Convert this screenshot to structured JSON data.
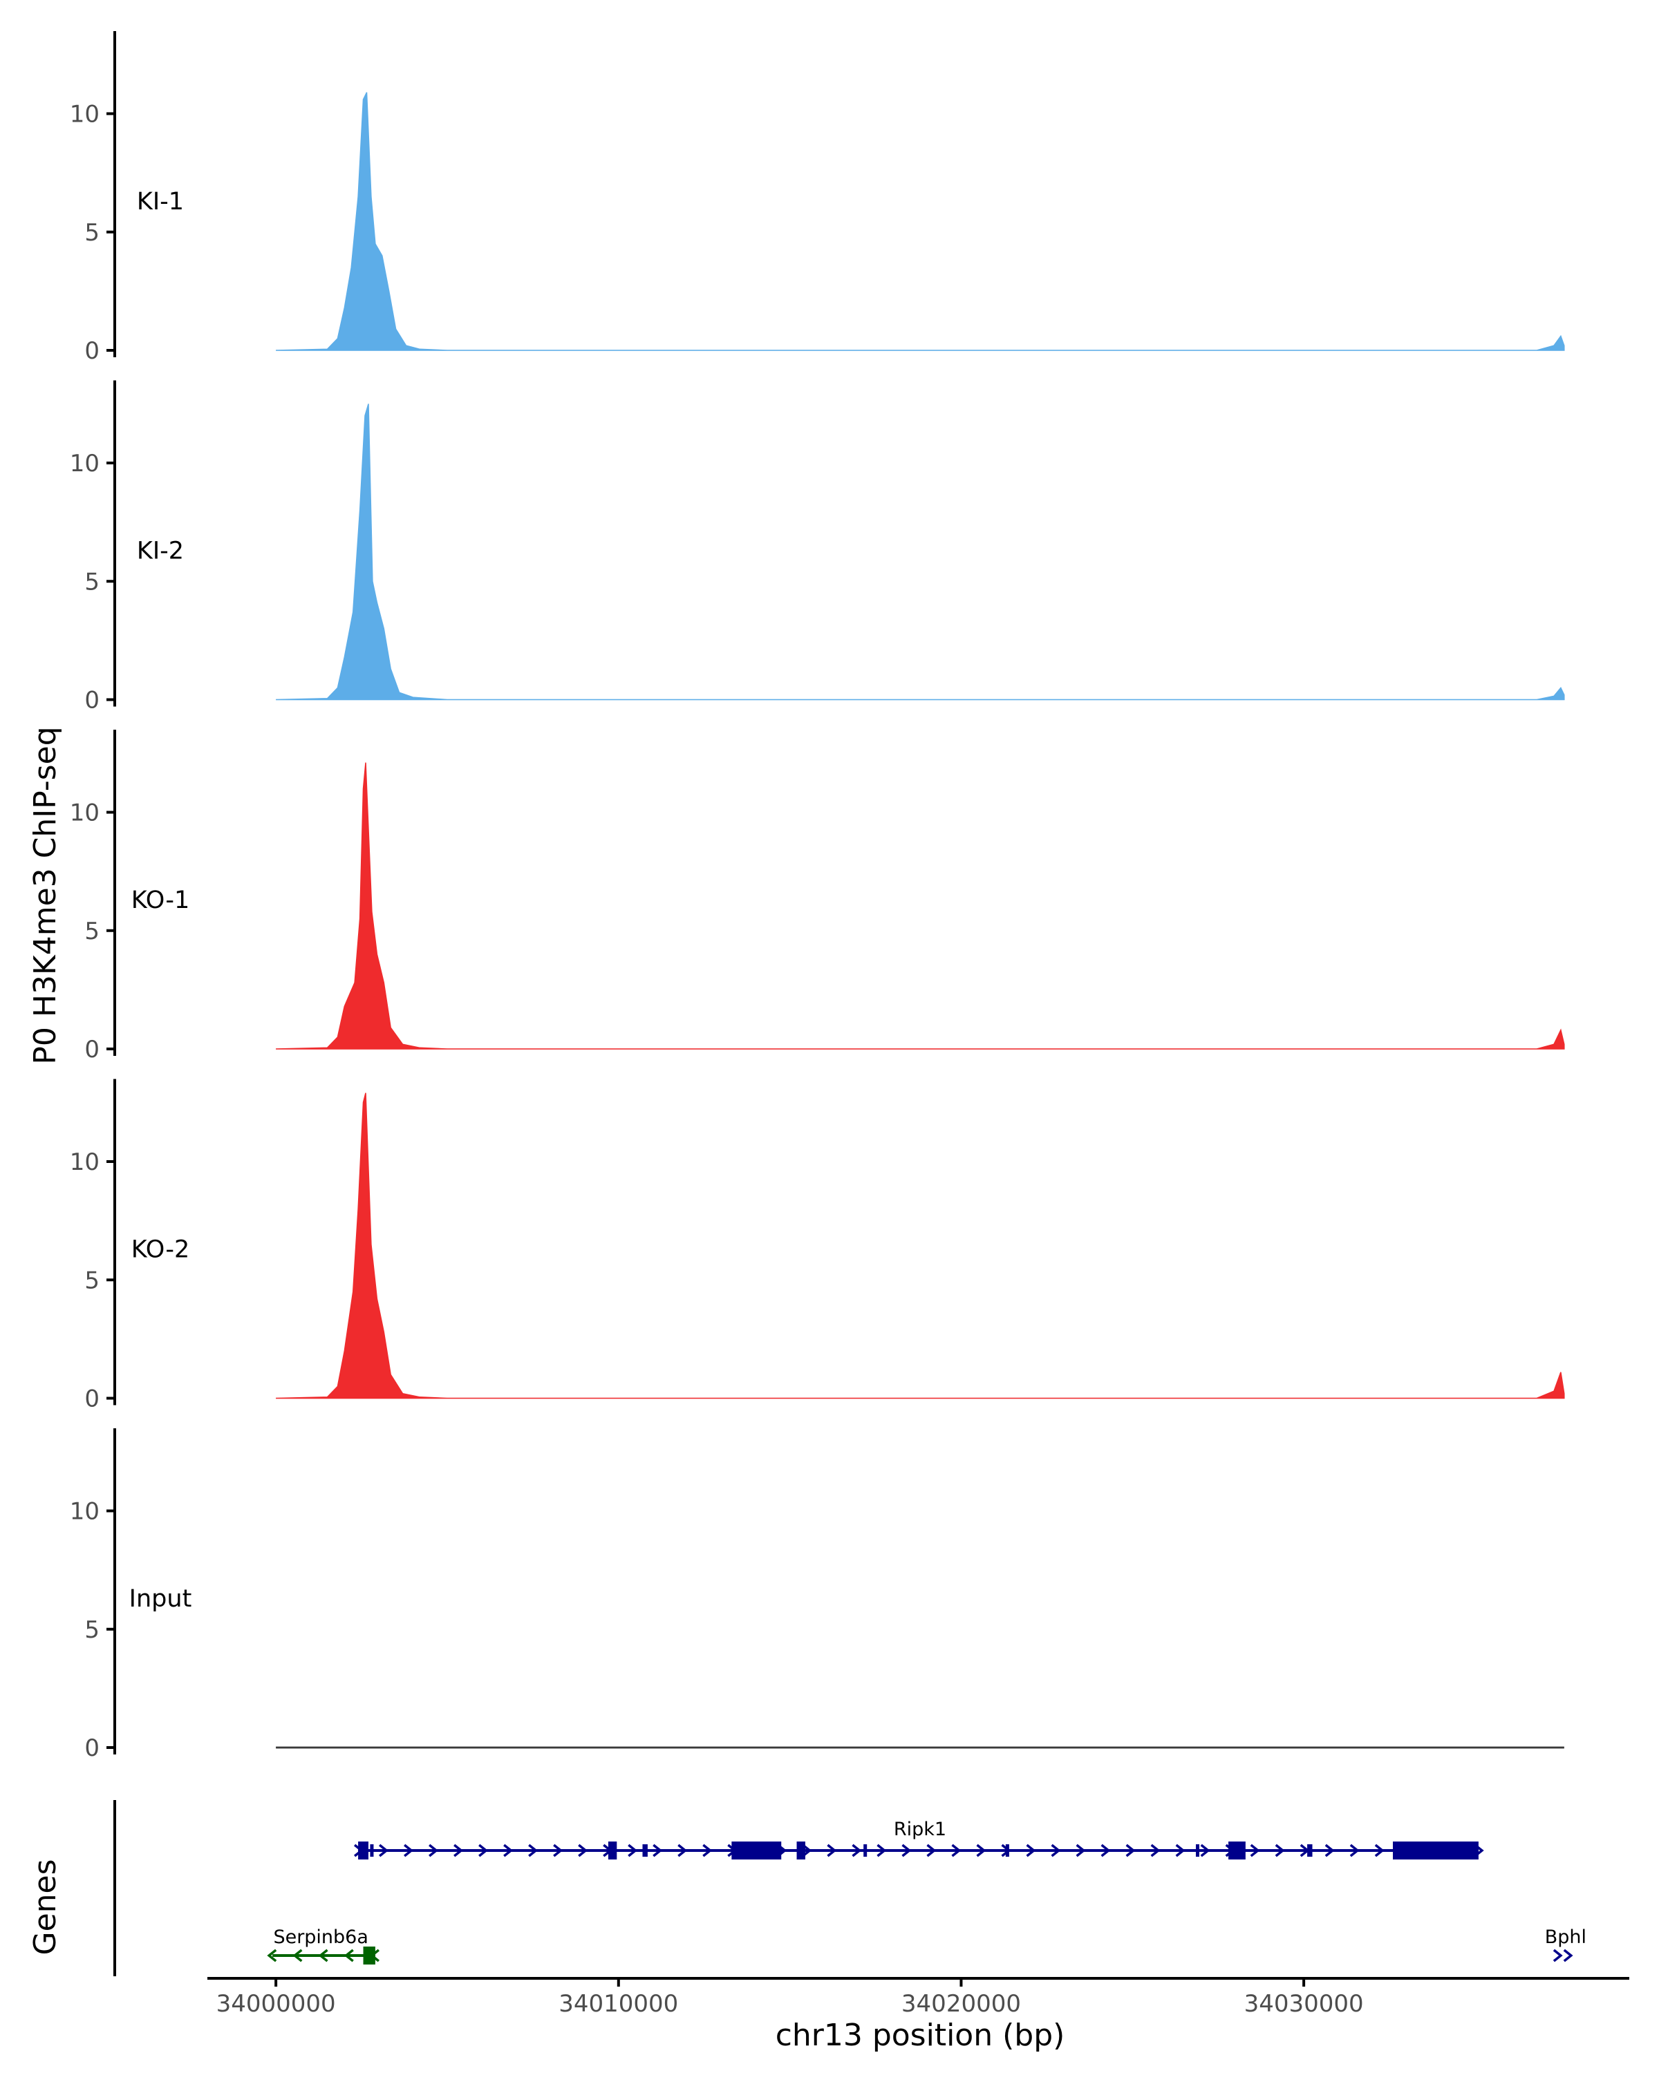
{
  "chart_data": {
    "type": "area",
    "ylabel": "P0 H3K4me3 ChIP-seq",
    "xlabel": "chr13 position (bp)",
    "colors": {
      "KI": "#5dade8",
      "KO": "#ef2b2d",
      "Input": "#333333",
      "gene_plus": "#00008b",
      "gene_minus": "#006400",
      "axis": "#000000",
      "tick_text": "#4d4d4d"
    },
    "xlim": [
      33998000,
      34039500
    ],
    "x_ticks": [
      34000000,
      34010000,
      34020000,
      34030000
    ],
    "x_tick_labels": [
      "34000000",
      "34010000",
      "34020000",
      "34030000"
    ],
    "ylim": [
      0,
      13.5
    ],
    "y_ticks": [
      0,
      5,
      10
    ],
    "y_tick_labels": [
      "0",
      "5",
      "10"
    ],
    "region": [
      34000000,
      34037600
    ],
    "tracks": [
      {
        "name": "KI-1",
        "color_key": "KI",
        "points": [
          [
            34000000,
            0
          ],
          [
            34001500,
            0.05
          ],
          [
            34001800,
            0.5
          ],
          [
            34002000,
            1.8
          ],
          [
            34002200,
            3.5
          ],
          [
            34002400,
            6.5
          ],
          [
            34002550,
            10.6
          ],
          [
            34002650,
            10.9
          ],
          [
            34002780,
            6.5
          ],
          [
            34002900,
            4.5
          ],
          [
            34003100,
            4.0
          ],
          [
            34003300,
            2.5
          ],
          [
            34003500,
            0.9
          ],
          [
            34003800,
            0.2
          ],
          [
            34004200,
            0.05
          ],
          [
            34005000,
            0
          ],
          [
            34036800,
            0
          ],
          [
            34037300,
            0.2
          ],
          [
            34037500,
            0.6
          ],
          [
            34037600,
            0.2
          ]
        ]
      },
      {
        "name": "KI-2",
        "color_key": "KI",
        "points": [
          [
            34000000,
            0
          ],
          [
            34001500,
            0.05
          ],
          [
            34001800,
            0.5
          ],
          [
            34002000,
            1.8
          ],
          [
            34002250,
            3.7
          ],
          [
            34002450,
            8.0
          ],
          [
            34002600,
            12.0
          ],
          [
            34002700,
            12.5
          ],
          [
            34002820,
            5.0
          ],
          [
            34002950,
            4.1
          ],
          [
            34003150,
            3.0
          ],
          [
            34003350,
            1.3
          ],
          [
            34003600,
            0.3
          ],
          [
            34004000,
            0.1
          ],
          [
            34005000,
            0
          ],
          [
            34036800,
            0
          ],
          [
            34037300,
            0.15
          ],
          [
            34037500,
            0.5
          ],
          [
            34037600,
            0.2
          ]
        ]
      },
      {
        "name": "KO-1",
        "color_key": "KO",
        "points": [
          [
            34000000,
            0
          ],
          [
            34001500,
            0.05
          ],
          [
            34001800,
            0.5
          ],
          [
            34002000,
            1.8
          ],
          [
            34002300,
            2.8
          ],
          [
            34002450,
            5.5
          ],
          [
            34002550,
            11.0
          ],
          [
            34002620,
            12.1
          ],
          [
            34002800,
            5.8
          ],
          [
            34002950,
            4.0
          ],
          [
            34003150,
            2.8
          ],
          [
            34003350,
            0.9
          ],
          [
            34003700,
            0.2
          ],
          [
            34004200,
            0.05
          ],
          [
            34005000,
            0
          ],
          [
            34036800,
            0
          ],
          [
            34037300,
            0.2
          ],
          [
            34037500,
            0.8
          ],
          [
            34037600,
            0.2
          ]
        ]
      },
      {
        "name": "KO-2",
        "color_key": "KO",
        "points": [
          [
            34000000,
            0
          ],
          [
            34001500,
            0.05
          ],
          [
            34001800,
            0.5
          ],
          [
            34002000,
            2.0
          ],
          [
            34002250,
            4.5
          ],
          [
            34002400,
            8.0
          ],
          [
            34002550,
            12.5
          ],
          [
            34002620,
            12.9
          ],
          [
            34002780,
            6.5
          ],
          [
            34002950,
            4.2
          ],
          [
            34003150,
            2.8
          ],
          [
            34003350,
            1.0
          ],
          [
            34003700,
            0.2
          ],
          [
            34004200,
            0.05
          ],
          [
            34005000,
            0
          ],
          [
            34036800,
            0
          ],
          [
            34037300,
            0.3
          ],
          [
            34037500,
            1.1
          ],
          [
            34037600,
            0.2
          ]
        ]
      },
      {
        "name": "Input",
        "color_key": "Input",
        "points": [
          [
            34000000,
            0
          ],
          [
            34037600,
            0
          ]
        ]
      }
    ],
    "genes_label": "Genes",
    "genes": [
      {
        "name": "Ripk1",
        "strand": "+",
        "start": 34002400,
        "end": 34035100,
        "color_key": "gene_plus",
        "exons": [
          [
            34002400,
            34002700
          ],
          [
            34002750,
            34002850
          ],
          [
            34009700,
            34009950
          ],
          [
            34010700,
            34010850
          ],
          [
            34013300,
            34014750
          ],
          [
            34015200,
            34015450
          ],
          [
            34017150,
            34017250
          ],
          [
            34021300,
            34021350
          ],
          [
            34026850,
            34026900
          ],
          [
            34027800,
            34028300
          ],
          [
            34030100,
            34030250
          ],
          [
            34032600,
            34035100
          ]
        ]
      },
      {
        "name": "Serpinb6a",
        "strand": "-",
        "start": 33999900,
        "end": 34002900,
        "color_key": "gene_minus",
        "exons": [
          [
            34002550,
            34002900
          ]
        ]
      },
      {
        "name": "Bphl",
        "strand": "+",
        "start": 34037400,
        "end": 34037700,
        "color_key": "gene_plus",
        "exons": []
      }
    ]
  }
}
